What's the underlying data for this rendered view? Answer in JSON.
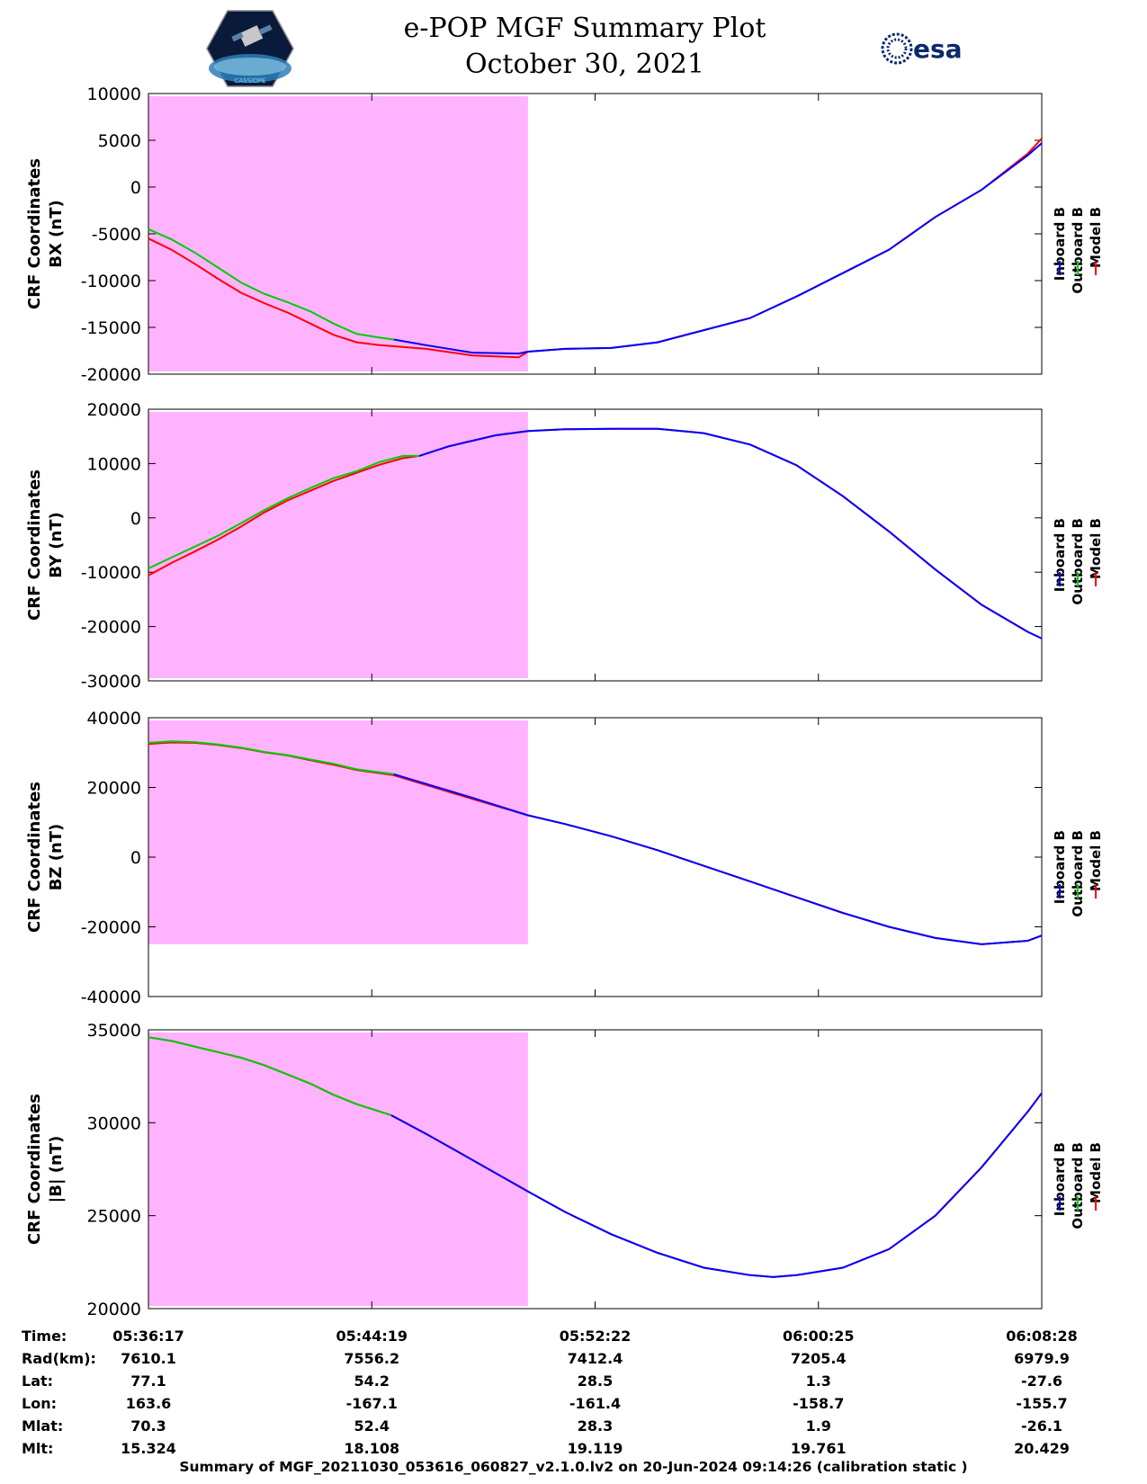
{
  "header": {
    "title_line1": "e-POP MGF Summary Plot",
    "title_line2": "October 30, 2021",
    "logo_left_text": "CASSIOPE",
    "logo_right_text": "esa"
  },
  "colors": {
    "inboard": "#0000ff",
    "outboard": "#00cc00",
    "model": "#ff0000",
    "shading": "#ffb3ff"
  },
  "chart_data": [
    {
      "type": "line",
      "ylabel_line1": "CRF Coordinates",
      "ylabel_line2": "BX (nT)",
      "ylim": [
        -20000,
        10000
      ],
      "yticks": [
        10000,
        5000,
        0,
        -5000,
        -10000,
        -15000,
        -20000
      ],
      "xlim": [
        0,
        1930
      ],
      "shaded_x": [
        0,
        820
      ],
      "legend": [
        "Inboard B",
        "Outboard B",
        "Model B"
      ],
      "series": [
        {
          "name": "Inboard B",
          "x": [
            530,
            600,
            700,
            800,
            820,
            900,
            1000,
            1100,
            1200,
            1300,
            1400,
            1500,
            1600,
            1700,
            1800,
            1900,
            1930
          ],
          "values": [
            -16300,
            -16900,
            -17700,
            -17800,
            -17600,
            -17300,
            -17200,
            -16600,
            -15300,
            -14000,
            -11700,
            -9200,
            -6700,
            -3200,
            -300,
            3400,
            4700
          ]
        },
        {
          "name": "Outboard B",
          "x": [
            0,
            50,
            100,
            150,
            200,
            250,
            300,
            350,
            400,
            450,
            500,
            530
          ],
          "values": [
            -4500,
            -5600,
            -7000,
            -8600,
            -10200,
            -11400,
            -12300,
            -13300,
            -14600,
            -15700,
            -16100,
            -16300
          ]
        },
        {
          "name": "Model B",
          "x": [
            0,
            50,
            100,
            150,
            200,
            250,
            300,
            350,
            400,
            450,
            500,
            600,
            700,
            800,
            820,
            900,
            1000,
            1100,
            1200,
            1300,
            1400,
            1500,
            1600,
            1700,
            1800,
            1900,
            1930
          ],
          "values": [
            -5500,
            -6700,
            -8200,
            -9800,
            -11300,
            -12400,
            -13400,
            -14600,
            -15800,
            -16600,
            -16900,
            -17300,
            -18000,
            -18200,
            -17600,
            -17300,
            -17200,
            -16600,
            -15300,
            -14000,
            -11700,
            -9200,
            -6700,
            -3200,
            -300,
            3600,
            5200
          ]
        }
      ]
    },
    {
      "type": "line",
      "ylabel_line1": "CRF Coordinates",
      "ylabel_line2": "BY (nT)",
      "ylim": [
        -30000,
        20000
      ],
      "yticks": [
        20000,
        10000,
        0,
        -10000,
        -20000,
        -30000
      ],
      "xlim": [
        0,
        1930
      ],
      "shaded_x": [
        0,
        820
      ],
      "legend": [
        "Inboard B",
        "Outboard B",
        "Model B"
      ],
      "series": [
        {
          "name": "Inboard B",
          "x": [
            585,
            650,
            750,
            820,
            900,
            1000,
            1100,
            1200,
            1300,
            1400,
            1500,
            1600,
            1700,
            1800,
            1900,
            1930
          ],
          "values": [
            11400,
            13200,
            15200,
            16000,
            16300,
            16400,
            16400,
            15600,
            13500,
            9700,
            4000,
            -2500,
            -9500,
            -16000,
            -21000,
            -22200
          ]
        },
        {
          "name": "Outboard B",
          "x": [
            0,
            50,
            100,
            150,
            200,
            250,
            300,
            350,
            400,
            450,
            500,
            550,
            585
          ],
          "values": [
            -9300,
            -7300,
            -5300,
            -3300,
            -1000,
            1400,
            3600,
            5500,
            7300,
            8600,
            10300,
            11400,
            11400
          ]
        },
        {
          "name": "Model B",
          "x": [
            0,
            50,
            100,
            150,
            200,
            250,
            300,
            350,
            400,
            450,
            500,
            550,
            585,
            650,
            750,
            820,
            900,
            1000,
            1100,
            1200,
            1300,
            1400,
            1500,
            1600,
            1700,
            1800,
            1900,
            1930
          ],
          "values": [
            -10600,
            -8300,
            -6200,
            -4000,
            -1600,
            1000,
            3200,
            5000,
            6800,
            8300,
            9800,
            11000,
            11400,
            13200,
            15200,
            16000,
            16300,
            16400,
            16400,
            15600,
            13500,
            9700,
            4000,
            -2500,
            -9500,
            -16000,
            -21000,
            -22200
          ]
        }
      ]
    },
    {
      "type": "line",
      "ylabel_line1": "CRF Coordinates",
      "ylabel_line2": "BZ (nT)",
      "ylim": [
        -40000,
        40000
      ],
      "yticks": [
        40000,
        20000,
        0,
        -20000,
        -40000
      ],
      "xlim": [
        0,
        1930
      ],
      "shaded_x": [
        0,
        820
      ],
      "legend": [
        "Inboard B",
        "Outboard B",
        "Model B"
      ],
      "series": [
        {
          "name": "Inboard B",
          "x": [
            530,
            600,
            700,
            820,
            900,
            1000,
            1100,
            1200,
            1300,
            1400,
            1500,
            1600,
            1700,
            1800,
            1900,
            1930
          ],
          "values": [
            23800,
            21000,
            17000,
            12000,
            9500,
            6000,
            2000,
            -2500,
            -7000,
            -11500,
            -16000,
            -20000,
            -23200,
            -25000,
            -24000,
            -22500
          ]
        },
        {
          "name": "Outboard B",
          "x": [
            0,
            50,
            100,
            150,
            200,
            250,
            300,
            350,
            400,
            450,
            500,
            530
          ],
          "values": [
            32800,
            33200,
            33000,
            32300,
            31400,
            30200,
            29300,
            28000,
            26800,
            25200,
            24300,
            23800
          ]
        },
        {
          "name": "Model B",
          "x": [
            0,
            50,
            100,
            150,
            200,
            250,
            300,
            350,
            400,
            450,
            500,
            530,
            600,
            700,
            820,
            900,
            1000,
            1100,
            1200,
            1300,
            1400,
            1500,
            1600,
            1700,
            1800,
            1900,
            1930
          ],
          "values": [
            32500,
            32900,
            32800,
            32200,
            31300,
            30100,
            29200,
            27800,
            26500,
            25000,
            24100,
            23500,
            20700,
            16700,
            12000,
            9500,
            6000,
            2000,
            -2500,
            -7000,
            -11500,
            -16000,
            -20000,
            -23200,
            -25000,
            -24000,
            -22500
          ]
        }
      ]
    },
    {
      "type": "line",
      "ylabel_line1": "CRF Coordinates",
      "ylabel_line2": "|B| (nT)",
      "ylim": [
        20000,
        35000
      ],
      "yticks": [
        35000,
        30000,
        25000,
        20000
      ],
      "xlim": [
        0,
        1930
      ],
      "shaded_x": [
        0,
        820
      ],
      "legend": [
        "Inboard B",
        "Outboard B",
        "Model B"
      ],
      "series": [
        {
          "name": "Inboard B",
          "x": [
            525,
            600,
            700,
            820,
            900,
            1000,
            1100,
            1200,
            1300,
            1350,
            1400,
            1500,
            1600,
            1700,
            1800,
            1900,
            1930
          ],
          "values": [
            30400,
            29400,
            28000,
            26300,
            25200,
            24000,
            23000,
            22200,
            21800,
            21700,
            21800,
            22200,
            23200,
            25000,
            27600,
            30600,
            31600
          ]
        },
        {
          "name": "Outboard B",
          "x": [
            0,
            50,
            100,
            150,
            200,
            250,
            300,
            350,
            400,
            450,
            500,
            525
          ],
          "values": [
            34600,
            34400,
            34100,
            33800,
            33500,
            33100,
            32600,
            32100,
            31500,
            31000,
            30600,
            30400
          ]
        },
        {
          "name": "Model B",
          "x": [
            0,
            50,
            100,
            150,
            200,
            250,
            300,
            350,
            400,
            450,
            500,
            525,
            600,
            700,
            820,
            900,
            1000,
            1100,
            1200,
            1300,
            1350,
            1400,
            1500,
            1600,
            1700,
            1800,
            1900,
            1930
          ],
          "values": [
            34600,
            34400,
            34100,
            33800,
            33500,
            33100,
            32600,
            32100,
            31500,
            31000,
            30600,
            30400,
            29400,
            28000,
            26300,
            25200,
            24000,
            23000,
            22200,
            21800,
            21700,
            21800,
            22200,
            23200,
            25000,
            27600,
            30600,
            31600
          ]
        }
      ]
    }
  ],
  "orbit_table": {
    "labels": [
      "Time:",
      "Rad(km):",
      "Lat:",
      "Lon:",
      "Mlat:",
      "Mlt:"
    ],
    "columns": [
      [
        "05:36:17",
        "7610.1",
        "77.1",
        "163.6",
        "70.3",
        "15.324"
      ],
      [
        "05:44:19",
        "7556.2",
        "54.2",
        "-167.1",
        "52.4",
        "18.108"
      ],
      [
        "05:52:22",
        "7412.4",
        "28.5",
        "-161.4",
        "28.3",
        "19.119"
      ],
      [
        "06:00:25",
        "7205.4",
        "1.3",
        "-158.7",
        "1.9",
        "19.761"
      ],
      [
        "06:08:28",
        "6979.9",
        "-27.6",
        "-155.7",
        "-26.1",
        "20.429"
      ]
    ]
  },
  "footer": "Summary of MGF_20211030_053616_060827_v2.1.0.lv2 on 20-Jun-2024 09:14:26 (calibration static )"
}
